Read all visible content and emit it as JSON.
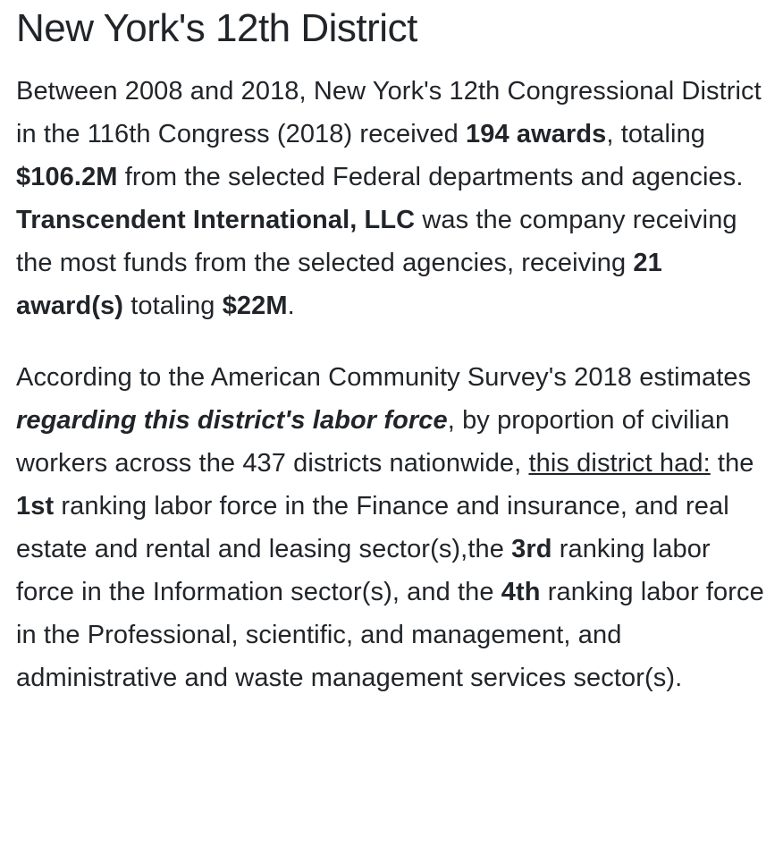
{
  "title": "New York's 12th District",
  "para1": {
    "t1": "Between 2008 and 2018, New York's 12th Congressional District in the 116th Congress (2018) received ",
    "awards": "194 awards",
    "t2": ", totaling ",
    "total": "$106.2M",
    "t3": " from the selected Federal departments and agencies. ",
    "company": "Transcendent International, LLC",
    "t4": " was the company receiving the most funds from the selected agencies, receiving ",
    "company_awards": "21 award(s)",
    "t5": " totaling ",
    "company_total": "$22M",
    "t6": "."
  },
  "para2": {
    "t1": "According to the American Community Survey's 2018 estimates ",
    "emph": "regarding this district's labor force",
    "t2": ", by proportion of civilian workers across the 437 districts nationwide, ",
    "link": "this district had:",
    "t3": " the ",
    "rank1": "1st",
    "t4": " ranking labor force in the Finance and insurance, and real estate and rental and leasing sector(s),the ",
    "rank2": "3rd",
    "t5": " ranking labor force in the Information sector(s), and the ",
    "rank3": "4th",
    "t6": " ranking labor force in the Professional, scientific, and management, and administrative and waste management services sector(s)."
  }
}
